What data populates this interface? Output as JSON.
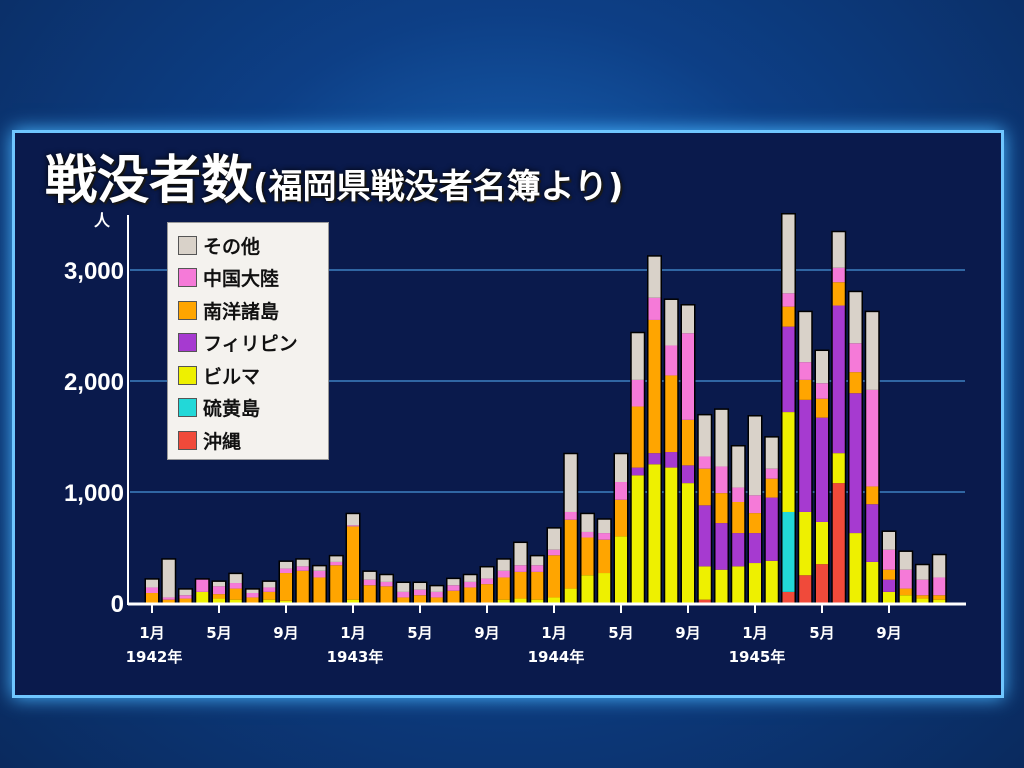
{
  "title": {
    "main": "戦没者数",
    "sub": "(福岡県戦没者名簿より)"
  },
  "chart_data": {
    "type": "bar",
    "stacked": true,
    "title": "戦没者数(福岡県戦没者名簿より)",
    "ylabel": "人",
    "xlabel": "",
    "ylim": [
      0,
      3500
    ],
    "yticks": [
      {
        "v": 0,
        "label": "0"
      },
      {
        "v": 1000,
        "label": "1,000"
      },
      {
        "v": 2000,
        "label": "2,000"
      },
      {
        "v": 3000,
        "label": "3,000"
      }
    ],
    "xticks": [
      {
        "i": 0,
        "label": "1月",
        "year": "1942年"
      },
      {
        "i": 4,
        "label": "5月"
      },
      {
        "i": 8,
        "label": "9月"
      },
      {
        "i": 12,
        "label": "1月",
        "year": "1943年"
      },
      {
        "i": 16,
        "label": "5月"
      },
      {
        "i": 20,
        "label": "9月"
      },
      {
        "i": 24,
        "label": "1月",
        "year": "1944年"
      },
      {
        "i": 28,
        "label": "5月"
      },
      {
        "i": 32,
        "label": "9月"
      },
      {
        "i": 36,
        "label": "1月",
        "year": "1945年"
      },
      {
        "i": 40,
        "label": "5月"
      },
      {
        "i": 44,
        "label": "9月"
      }
    ],
    "categories_note": "monthly, 1942-01 to 1945-12",
    "legend_position": "top-left",
    "series_order": [
      "沖縄",
      "硫黄島",
      "ビルマ",
      "フィリピン",
      "南洋諸島",
      "中国大陸",
      "その他"
    ],
    "legend": [
      {
        "name": "その他",
        "color": "#d9d2c9"
      },
      {
        "name": "中国大陸",
        "color": "#f57ad8"
      },
      {
        "name": "南洋諸島",
        "color": "#ffa500"
      },
      {
        "name": "フィリピン",
        "color": "#a63ad0"
      },
      {
        "name": "ビルマ",
        "color": "#eef000"
      },
      {
        "name": "硫黄島",
        "color": "#22d8d8"
      },
      {
        "name": "沖縄",
        "color": "#f04a3a"
      }
    ],
    "colors": [
      "#f04a3a",
      "#22d8d8",
      "#eef000",
      "#a63ad0",
      "#ffa500",
      "#f57ad8",
      "#d9d2c9"
    ],
    "values": [
      [
        0,
        0,
        0,
        0,
        90,
        50,
        70
      ],
      [
        0,
        0,
        0,
        0,
        30,
        20,
        340
      ],
      [
        0,
        0,
        0,
        0,
        40,
        30,
        50
      ],
      [
        0,
        0,
        100,
        0,
        0,
        110,
        0
      ],
      [
        0,
        0,
        40,
        0,
        40,
        70,
        40
      ],
      [
        0,
        0,
        30,
        0,
        100,
        50,
        80
      ],
      [
        0,
        0,
        0,
        0,
        50,
        40,
        30
      ],
      [
        0,
        0,
        30,
        0,
        70,
        40,
        50
      ],
      [
        0,
        0,
        20,
        0,
        250,
        40,
        60
      ],
      [
        0,
        0,
        0,
        0,
        290,
        40,
        60
      ],
      [
        0,
        0,
        0,
        0,
        230,
        60,
        40
      ],
      [
        0,
        0,
        0,
        0,
        340,
        30,
        50
      ],
      [
        0,
        0,
        30,
        0,
        660,
        10,
        100
      ],
      [
        0,
        0,
        0,
        0,
        160,
        50,
        70
      ],
      [
        0,
        0,
        0,
        0,
        150,
        40,
        60
      ],
      [
        0,
        0,
        0,
        0,
        50,
        50,
        80
      ],
      [
        0,
        0,
        0,
        0,
        70,
        50,
        60
      ],
      [
        0,
        0,
        0,
        0,
        50,
        50,
        50
      ],
      [
        0,
        0,
        0,
        0,
        110,
        50,
        55
      ],
      [
        0,
        0,
        0,
        0,
        140,
        50,
        60
      ],
      [
        0,
        0,
        0,
        0,
        170,
        50,
        100
      ],
      [
        0,
        0,
        30,
        0,
        200,
        60,
        100
      ],
      [
        0,
        0,
        40,
        0,
        240,
        60,
        200
      ],
      [
        0,
        0,
        30,
        0,
        250,
        60,
        80
      ],
      [
        0,
        0,
        50,
        0,
        380,
        50,
        190
      ],
      [
        0,
        0,
        130,
        0,
        620,
        70,
        520
      ],
      [
        0,
        0,
        250,
        0,
        340,
        50,
        160
      ],
      [
        0,
        0,
        270,
        0,
        300,
        60,
        120
      ],
      [
        0,
        0,
        600,
        0,
        330,
        160,
        250
      ],
      [
        0,
        0,
        1150,
        70,
        550,
        240,
        420
      ],
      [
        0,
        0,
        1250,
        100,
        1200,
        200,
        370
      ],
      [
        0,
        0,
        1220,
        140,
        690,
        270,
        410
      ],
      [
        0,
        0,
        1080,
        160,
        410,
        780,
        250
      ],
      [
        30,
        0,
        300,
        550,
        330,
        110,
        370
      ],
      [
        0,
        0,
        300,
        420,
        270,
        240,
        510
      ],
      [
        0,
        0,
        330,
        300,
        280,
        130,
        370
      ],
      [
        0,
        0,
        360,
        270,
        180,
        160,
        710
      ],
      [
        0,
        0,
        380,
        570,
        170,
        90,
        280
      ],
      [
        100,
        720,
        900,
        770,
        180,
        120,
        710
      ],
      [
        250,
        0,
        570,
        1010,
        180,
        160,
        450
      ],
      [
        350,
        0,
        380,
        940,
        170,
        140,
        290
      ],
      [
        1080,
        0,
        270,
        1330,
        210,
        130,
        320
      ],
      [
        0,
        0,
        630,
        1260,
        190,
        260,
        460
      ],
      [
        0,
        0,
        370,
        520,
        160,
        870,
        700
      ],
      [
        0,
        0,
        100,
        110,
        90,
        180,
        160
      ],
      [
        0,
        0,
        70,
        0,
        60,
        170,
        160
      ],
      [
        0,
        0,
        40,
        0,
        30,
        140,
        130
      ],
      [
        0,
        0,
        30,
        0,
        40,
        160,
        200
      ]
    ]
  }
}
